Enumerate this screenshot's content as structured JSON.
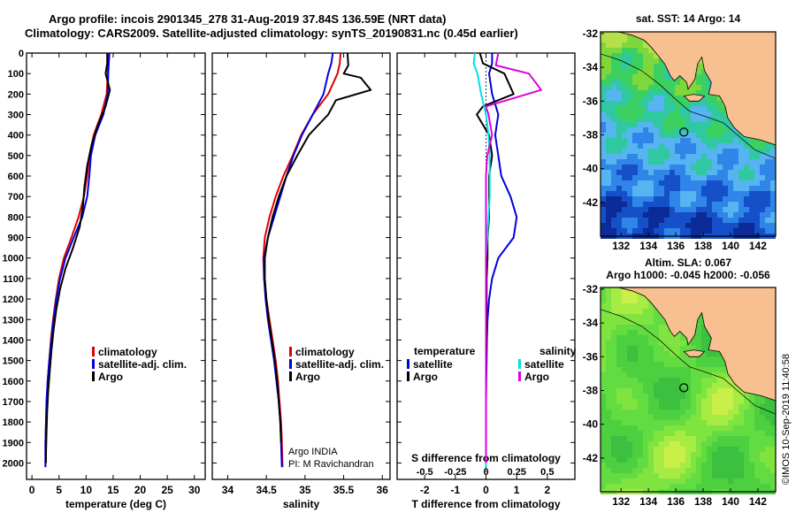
{
  "title_line1": "Argo profile: incois 2901345_278 31-Aug-2019 37.84S 136.59E (NRT data)",
  "title_line2": "Climatology: CARS2009. Satellite-adjusted climatology: synTS_20190831.nc (0.45d earlier)",
  "colors": {
    "climatology": "#e00000",
    "satellite": "#0000e0",
    "argo": "#000000",
    "sat_salinity": "#00e0e0",
    "argo_salinity": "#e000e0",
    "land": "#f8c090",
    "frame": "#000000"
  },
  "chart_data": [
    {
      "type": "line",
      "xlabel": "temperature (deg C)",
      "ylabel": "",
      "xlim": [
        -1,
        32
      ],
      "ylim": [
        2080,
        0
      ],
      "xticks": [
        "0",
        "5",
        "10",
        "15",
        "20",
        "25",
        "30"
      ],
      "yticks": [
        "0",
        "100",
        "200",
        "300",
        "400",
        "500",
        "600",
        "700",
        "800",
        "900",
        "1000",
        "1100",
        "1200",
        "1300",
        "1400",
        "1500",
        "1600",
        "1700",
        "1800",
        "1900",
        "2000"
      ],
      "legend_position": "lower-middle",
      "series": [
        {
          "name": "climatology",
          "color": "#e00000",
          "x": [
            14.1,
            14.0,
            14.0,
            13.8,
            12.8,
            11.4,
            10.6,
            10.2,
            9.6,
            8.6,
            7.3,
            5.9,
            5.0,
            4.4,
            3.9,
            3.5,
            3.2,
            2.9,
            2.7,
            2.6,
            2.5,
            2.5
          ],
          "y": [
            0,
            50,
            100,
            200,
            300,
            400,
            500,
            600,
            700,
            800,
            900,
            1000,
            1100,
            1200,
            1300,
            1400,
            1500,
            1600,
            1700,
            1800,
            1900,
            2020
          ]
        },
        {
          "name": "satellite-adj. clim.",
          "color": "#0000e0",
          "x": [
            14.3,
            14.2,
            14.1,
            14.0,
            13.2,
            11.7,
            10.9,
            10.6,
            10.2,
            9.3,
            7.7,
            6.2,
            5.2,
            4.5,
            4.0,
            3.6,
            3.2,
            2.9,
            2.7,
            2.6,
            2.5,
            2.5
          ],
          "y": [
            0,
            50,
            100,
            200,
            300,
            400,
            500,
            600,
            700,
            800,
            900,
            1000,
            1100,
            1200,
            1300,
            1400,
            1500,
            1600,
            1700,
            1800,
            1900,
            2020
          ]
        },
        {
          "name": "Argo",
          "color": "#000000",
          "x": [
            13.9,
            13.9,
            13.6,
            14.4,
            13.6,
            12.2,
            11.0,
            10.2,
            9.7,
            9.4,
            8.8,
            7.6,
            6.2,
            5.2,
            4.5,
            4.0,
            3.6,
            3.3,
            3.0,
            2.8,
            2.7,
            2.6,
            2.6
          ],
          "y": [
            0,
            50,
            100,
            180,
            260,
            350,
            450,
            550,
            650,
            750,
            850,
            950,
            1050,
            1150,
            1250,
            1350,
            1450,
            1550,
            1650,
            1750,
            1850,
            1950,
            2000
          ]
        }
      ]
    },
    {
      "type": "line",
      "xlabel": "salinity",
      "ylabel": "",
      "xlim": [
        33.8,
        36.1
      ],
      "ylim": [
        2080,
        0
      ],
      "xticks": [
        "34",
        "34.5",
        "35",
        "35.5",
        "36"
      ],
      "legend_position": "lower-middle",
      "annotation": [
        "Argo INDIA",
        "PI: M Ravichandran"
      ],
      "series": [
        {
          "name": "climatology",
          "color": "#e00000",
          "x": [
            35.46,
            35.45,
            35.42,
            35.3,
            35.1,
            34.95,
            34.84,
            34.72,
            34.62,
            34.54,
            34.48,
            34.46,
            34.47,
            34.5,
            34.54,
            34.58,
            34.62,
            34.65,
            34.67,
            34.69,
            34.7,
            34.71
          ],
          "y": [
            0,
            50,
            100,
            200,
            300,
            400,
            500,
            600,
            700,
            800,
            900,
            1000,
            1100,
            1200,
            1300,
            1400,
            1500,
            1600,
            1700,
            1800,
            1900,
            2020
          ]
        },
        {
          "name": "satellite-adj. clim.",
          "color": "#0000e0",
          "x": [
            35.36,
            35.34,
            35.3,
            35.24,
            35.1,
            34.96,
            34.85,
            34.76,
            34.68,
            34.6,
            34.52,
            34.47,
            34.47,
            34.49,
            34.52,
            34.56,
            34.6,
            34.63,
            34.66,
            34.68,
            34.69,
            34.7
          ],
          "y": [
            0,
            50,
            100,
            200,
            300,
            400,
            500,
            600,
            700,
            800,
            900,
            1000,
            1100,
            1200,
            1300,
            1400,
            1500,
            1600,
            1700,
            1800,
            1900,
            2020
          ]
        },
        {
          "name": "Argo",
          "color": "#000000",
          "x": [
            35.55,
            35.56,
            35.5,
            35.72,
            35.85,
            35.4,
            35.3,
            35.05,
            34.9,
            34.76,
            34.66,
            34.58,
            34.52,
            34.48,
            34.48,
            34.5,
            34.53,
            34.57,
            34.61,
            34.64,
            34.66,
            34.68,
            34.69
          ],
          "y": [
            0,
            60,
            100,
            120,
            180,
            230,
            300,
            400,
            500,
            600,
            700,
            800,
            900,
            1000,
            1100,
            1200,
            1300,
            1400,
            1500,
            1600,
            1700,
            1800,
            1900
          ]
        }
      ]
    },
    {
      "type": "line",
      "xlabel": "T difference from climatology",
      "x2label": "S difference from climatology",
      "ylabel": "",
      "xlim": [
        -2.9,
        2.9
      ],
      "ylim": [
        2080,
        0
      ],
      "xticks": [
        "-2",
        "-1",
        "0",
        "1",
        "2"
      ],
      "x2ticks": [
        "-0.5",
        "-0.25",
        "0",
        "0.25",
        "0.5"
      ],
      "legend_position": "lower-middle",
      "legend_groups": [
        "temperature",
        "salinity"
      ],
      "series": [
        {
          "name": "satellite",
          "group": "temperature",
          "color": "#0000e0",
          "x": [
            0.2,
            0.2,
            0.1,
            0.2,
            0.4,
            0.3,
            0.4,
            0.5,
            0.8,
            1.0,
            0.9,
            0.4,
            0.2,
            0.1,
            0.05,
            0.03,
            0.02,
            0.01,
            0.0,
            0.0,
            0.0,
            0.0
          ],
          "y": [
            0,
            50,
            100,
            200,
            300,
            400,
            500,
            600,
            700,
            800,
            900,
            1000,
            1100,
            1200,
            1300,
            1400,
            1500,
            1600,
            1700,
            1800,
            1900,
            2020
          ]
        },
        {
          "name": "Argo",
          "group": "temperature",
          "color": "#000000",
          "x": [
            -0.2,
            -0.1,
            0.6,
            0.9,
            -0.1,
            -0.3,
            0.1,
            0.2,
            0.1,
            0.1,
            0.1,
            0.05,
            0.05,
            0.02,
            0.02,
            0.02,
            0.02,
            0.01,
            0.0,
            0.0,
            0.0,
            0.0
          ],
          "y": [
            0,
            50,
            100,
            200,
            260,
            300,
            400,
            500,
            600,
            700,
            800,
            900,
            1000,
            1100,
            1200,
            1300,
            1400,
            1500,
            1600,
            1700,
            1800,
            2000
          ]
        },
        {
          "name": "satellite",
          "group": "salinity",
          "color": "#00e0e0",
          "x": [
            -0.09,
            -0.1,
            -0.07,
            -0.04,
            0.0,
            0.02,
            0.03,
            0.03,
            0.03,
            0.02,
            0.01,
            0.0,
            0.0,
            0.0,
            0.0,
            0.0,
            0.0,
            0.0,
            0.0,
            0.0
          ],
          "y": [
            0,
            50,
            100,
            200,
            300,
            400,
            500,
            600,
            700,
            800,
            900,
            1000,
            1100,
            1200,
            1300,
            1400,
            1500,
            1600,
            1700,
            2020
          ]
        },
        {
          "name": "Argo",
          "group": "salinity",
          "color": "#e000e0",
          "x": [
            0.1,
            0.08,
            0.35,
            0.45,
            0.0,
            0.02,
            0.05,
            0.01,
            0.0,
            0.0,
            0.0,
            0.0,
            0.0,
            0.0,
            0.0,
            0.0,
            0.0,
            0.0,
            0.0,
            0.0
          ],
          "y": [
            0,
            60,
            100,
            180,
            260,
            300,
            400,
            500,
            600,
            700,
            800,
            900,
            1000,
            1100,
            1200,
            1300,
            1400,
            1500,
            1700,
            2000
          ]
        }
      ]
    }
  ],
  "legend_left": [
    "climatology",
    "satellite-adj. clim.",
    "Argo"
  ],
  "legend_diff": {
    "temperature": "temperature",
    "salinity": "salinity",
    "satellite": "satellite",
    "argo": "Argo"
  },
  "maps": [
    {
      "title": "sat. SST: 14  Argo: 14",
      "subtitle": "",
      "lon_ticks": [
        "132",
        "134",
        "136",
        "138",
        "140",
        "142"
      ],
      "lat_ticks": [
        "-32",
        "-34",
        "-36",
        "-38",
        "-40",
        "-42"
      ],
      "profile_lon": 136.59,
      "profile_lat": -37.84,
      "palette": [
        "#0b2c98",
        "#1650c8",
        "#2f86e8",
        "#56b4f0",
        "#2fc8a0",
        "#3cd060",
        "#7ed83c",
        "#b4e048"
      ]
    },
    {
      "title": "Altim. SLA: 0.067",
      "subtitle": "Argo h1000: -0.045 h2000: -0.056",
      "lon_ticks": [
        "132",
        "134",
        "136",
        "138",
        "140",
        "142"
      ],
      "lat_ticks": [
        "-32",
        "-34",
        "-36",
        "-38",
        "-40",
        "-42"
      ],
      "profile_lon": 136.59,
      "profile_lat": -37.84,
      "palette": [
        "#3cc040",
        "#4cd040",
        "#62dc40",
        "#80e440",
        "#a6ec44",
        "#c8f048"
      ]
    }
  ],
  "credit": "©IMOS 10-Sep-2019 11:40:58"
}
